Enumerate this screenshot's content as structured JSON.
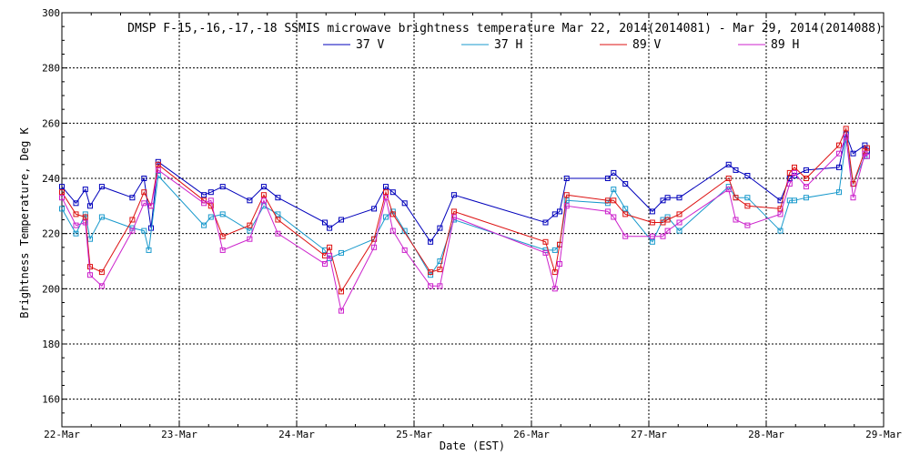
{
  "chart_data": {
    "type": "line",
    "title": "DMSP F-15,-16,-17,-18 SSMIS microwave brightness temperature Mar 22, 2014(2014081) - Mar 29, 2014(2014088)",
    "xlabel": "Date (EST)",
    "ylabel": "Brightness Temperature, Deg K",
    "xlim": [
      0,
      7
    ],
    "ylim": [
      150,
      300
    ],
    "grid": true,
    "legend_position": "top-center",
    "x_tick_labels": [
      "22-Mar",
      "23-Mar",
      "24-Mar",
      "25-Mar",
      "26-Mar",
      "27-Mar",
      "28-Mar",
      "29-Mar"
    ],
    "y_ticks": [
      160,
      180,
      200,
      220,
      240,
      260,
      280,
      300
    ],
    "series": [
      {
        "name": "37 V",
        "color": "#0000bb",
        "points": [
          [
            0.0,
            237
          ],
          [
            0.12,
            231
          ],
          [
            0.2,
            236
          ],
          [
            0.24,
            230
          ],
          [
            0.34,
            237
          ],
          [
            0.6,
            233
          ],
          [
            0.7,
            240
          ],
          [
            0.76,
            222
          ],
          [
            0.82,
            246
          ],
          [
            1.21,
            234
          ],
          [
            1.27,
            235
          ],
          [
            1.37,
            237
          ],
          [
            1.6,
            232
          ],
          [
            1.72,
            237
          ],
          [
            1.84,
            233
          ],
          [
            2.24,
            224
          ],
          [
            2.28,
            222
          ],
          [
            2.38,
            225
          ],
          [
            2.66,
            229
          ],
          [
            2.76,
            237
          ],
          [
            2.82,
            235
          ],
          [
            2.92,
            231
          ],
          [
            3.14,
            217
          ],
          [
            3.22,
            222
          ],
          [
            3.34,
            234
          ],
          [
            4.12,
            224
          ],
          [
            4.2,
            227
          ],
          [
            4.24,
            228
          ],
          [
            4.3,
            240
          ],
          [
            4.65,
            240
          ],
          [
            4.7,
            242
          ],
          [
            4.8,
            238
          ],
          [
            5.03,
            228
          ],
          [
            5.12,
            232
          ],
          [
            5.16,
            233
          ],
          [
            5.26,
            233
          ],
          [
            5.68,
            245
          ],
          [
            5.74,
            243
          ],
          [
            5.84,
            241
          ],
          [
            6.12,
            232
          ],
          [
            6.2,
            240
          ],
          [
            6.24,
            241
          ],
          [
            6.34,
            243
          ],
          [
            6.62,
            244
          ],
          [
            6.68,
            256
          ],
          [
            6.74,
            249
          ],
          [
            6.84,
            252
          ],
          [
            6.86,
            250
          ]
        ]
      },
      {
        "name": "37 H",
        "color": "#1899cc",
        "points": [
          [
            0.0,
            229
          ],
          [
            0.12,
            220
          ],
          [
            0.2,
            227
          ],
          [
            0.24,
            218
          ],
          [
            0.34,
            226
          ],
          [
            0.6,
            222
          ],
          [
            0.7,
            221
          ],
          [
            0.74,
            214
          ],
          [
            0.82,
            241
          ],
          [
            1.21,
            223
          ],
          [
            1.27,
            226
          ],
          [
            1.37,
            227
          ],
          [
            1.6,
            221
          ],
          [
            1.72,
            230
          ],
          [
            1.84,
            227
          ],
          [
            2.24,
            214
          ],
          [
            2.28,
            211
          ],
          [
            2.38,
            213
          ],
          [
            2.66,
            218
          ],
          [
            2.76,
            226
          ],
          [
            2.82,
            228
          ],
          [
            2.92,
            221
          ],
          [
            3.14,
            205
          ],
          [
            3.22,
            210
          ],
          [
            3.34,
            225
          ],
          [
            4.12,
            214
          ],
          [
            4.2,
            214
          ],
          [
            4.24,
            216
          ],
          [
            4.3,
            232
          ],
          [
            4.65,
            231
          ],
          [
            4.7,
            236
          ],
          [
            4.8,
            229
          ],
          [
            5.03,
            217
          ],
          [
            5.12,
            225
          ],
          [
            5.16,
            226
          ],
          [
            5.26,
            221
          ],
          [
            5.68,
            237
          ],
          [
            5.74,
            233
          ],
          [
            5.84,
            233
          ],
          [
            6.12,
            221
          ],
          [
            6.2,
            232
          ],
          [
            6.24,
            232
          ],
          [
            6.34,
            233
          ],
          [
            6.62,
            235
          ],
          [
            6.68,
            254
          ],
          [
            6.74,
            238
          ],
          [
            6.84,
            248
          ],
          [
            6.86,
            248
          ]
        ]
      },
      {
        "name": "89 V",
        "color": "#dd1111",
        "points": [
          [
            0.0,
            235
          ],
          [
            0.12,
            227
          ],
          [
            0.2,
            226
          ],
          [
            0.24,
            208
          ],
          [
            0.34,
            206
          ],
          [
            0.6,
            225
          ],
          [
            0.7,
            235
          ],
          [
            0.76,
            230
          ],
          [
            0.82,
            245
          ],
          [
            1.21,
            232
          ],
          [
            1.27,
            230
          ],
          [
            1.37,
            219
          ],
          [
            1.6,
            223
          ],
          [
            1.72,
            234
          ],
          [
            1.84,
            225
          ],
          [
            2.24,
            212
          ],
          [
            2.28,
            215
          ],
          [
            2.38,
            199
          ],
          [
            2.66,
            218
          ],
          [
            2.76,
            235
          ],
          [
            2.82,
            227
          ],
          [
            3.14,
            206
          ],
          [
            3.22,
            207
          ],
          [
            3.34,
            228
          ],
          [
            4.12,
            217
          ],
          [
            4.2,
            206
          ],
          [
            4.24,
            216
          ],
          [
            4.3,
            234
          ],
          [
            4.65,
            232
          ],
          [
            4.7,
            232
          ],
          [
            4.8,
            227
          ],
          [
            5.03,
            224
          ],
          [
            5.12,
            224
          ],
          [
            5.16,
            225
          ],
          [
            5.26,
            227
          ],
          [
            5.68,
            240
          ],
          [
            5.74,
            233
          ],
          [
            5.84,
            230
          ],
          [
            6.12,
            229
          ],
          [
            6.2,
            242
          ],
          [
            6.24,
            244
          ],
          [
            6.34,
            240
          ],
          [
            6.62,
            252
          ],
          [
            6.68,
            258
          ],
          [
            6.74,
            238
          ],
          [
            6.84,
            250
          ],
          [
            6.86,
            251
          ]
        ]
      },
      {
        "name": "89 H",
        "color": "#cc22cc",
        "points": [
          [
            0.0,
            233
          ],
          [
            0.12,
            223
          ],
          [
            0.2,
            224
          ],
          [
            0.24,
            205
          ],
          [
            0.34,
            201
          ],
          [
            0.6,
            221
          ],
          [
            0.7,
            231
          ],
          [
            0.76,
            230
          ],
          [
            0.82,
            243
          ],
          [
            1.21,
            231
          ],
          [
            1.27,
            232
          ],
          [
            1.37,
            214
          ],
          [
            1.6,
            218
          ],
          [
            1.72,
            232
          ],
          [
            1.84,
            220
          ],
          [
            2.24,
            209
          ],
          [
            2.28,
            212
          ],
          [
            2.38,
            192
          ],
          [
            2.66,
            215
          ],
          [
            2.76,
            233
          ],
          [
            2.82,
            221
          ],
          [
            2.92,
            214
          ],
          [
            3.14,
            201
          ],
          [
            3.22,
            201
          ],
          [
            3.34,
            226
          ],
          [
            4.12,
            213
          ],
          [
            4.2,
            200
          ],
          [
            4.24,
            209
          ],
          [
            4.3,
            230
          ],
          [
            4.65,
            228
          ],
          [
            4.7,
            226
          ],
          [
            4.8,
            219
          ],
          [
            5.03,
            219
          ],
          [
            5.12,
            219
          ],
          [
            5.16,
            221
          ],
          [
            5.26,
            224
          ],
          [
            5.68,
            236
          ],
          [
            5.74,
            225
          ],
          [
            5.84,
            223
          ],
          [
            6.12,
            227
          ],
          [
            6.2,
            238
          ],
          [
            6.24,
            242
          ],
          [
            6.34,
            237
          ],
          [
            6.62,
            249
          ],
          [
            6.68,
            255
          ],
          [
            6.74,
            233
          ],
          [
            6.84,
            249
          ],
          [
            6.86,
            248
          ]
        ]
      }
    ]
  }
}
